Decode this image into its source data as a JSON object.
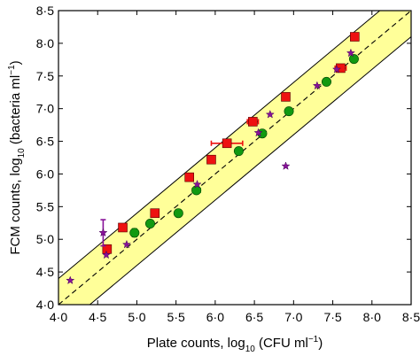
{
  "chart_data": {
    "type": "scatter",
    "x_tick_labels": [
      "4·0",
      "4·5",
      "5·0",
      "5·5",
      "6·0",
      "6·5",
      "7·0",
      "7·5",
      "8·0",
      "8·5"
    ],
    "y_tick_labels": [
      "4·0",
      "4·5",
      "5·0",
      "5·5",
      "6·0",
      "6·5",
      "7·0",
      "7·5",
      "8·0",
      "8·5"
    ],
    "xlim": [
      4.0,
      8.5
    ],
    "ylim": [
      4.0,
      8.5
    ],
    "xlabel": {
      "prefix": "Plate counts, log",
      "sub": "10",
      "suffix": " (CFU ml",
      "sup": "−1",
      "end": ")"
    },
    "ylabel": {
      "prefix": "FCM counts, log",
      "sub": "10",
      "suffix": " (bacteria ml",
      "sup": "−1",
      "end": ")"
    },
    "grid": false,
    "identity_line": {
      "slope": 1,
      "intercept": 0,
      "style": "dashed"
    },
    "band": {
      "half_width": 0.4,
      "color": "#ffff99"
    },
    "series": [
      {
        "marker": "square",
        "color": "#ee1111",
        "points": [
          {
            "x": 4.62,
            "y": 4.85
          },
          {
            "x": 4.82,
            "y": 5.18
          },
          {
            "x": 5.23,
            "y": 5.4
          },
          {
            "x": 5.67,
            "y": 5.95,
            "xerr": 0.05
          },
          {
            "x": 5.95,
            "y": 6.22
          },
          {
            "x": 6.15,
            "y": 6.47,
            "xerr": 0.2
          },
          {
            "x": 6.48,
            "y": 6.8,
            "xerr": 0.07
          },
          {
            "x": 6.9,
            "y": 7.18
          },
          {
            "x": 7.6,
            "y": 7.62,
            "xerr": 0.07
          },
          {
            "x": 7.78,
            "y": 8.1
          }
        ]
      },
      {
        "marker": "circle",
        "color": "#119911",
        "points": [
          {
            "x": 4.97,
            "y": 5.1,
            "yerr": 0.06
          },
          {
            "x": 5.17,
            "y": 5.24
          },
          {
            "x": 5.53,
            "y": 5.4
          },
          {
            "x": 5.76,
            "y": 5.75,
            "xerr": 0.05
          },
          {
            "x": 6.3,
            "y": 6.35
          },
          {
            "x": 6.6,
            "y": 6.62
          },
          {
            "x": 6.94,
            "y": 6.96
          },
          {
            "x": 7.42,
            "y": 7.41
          },
          {
            "x": 7.77,
            "y": 7.76
          }
        ]
      },
      {
        "marker": "star",
        "color": "#881199",
        "points": [
          {
            "x": 4.15,
            "y": 4.37
          },
          {
            "x": 4.57,
            "y": 5.1,
            "yerr": 0.2
          },
          {
            "x": 4.61,
            "y": 4.76
          },
          {
            "x": 4.87,
            "y": 4.92
          },
          {
            "x": 5.77,
            "y": 5.84
          },
          {
            "x": 6.55,
            "y": 6.63
          },
          {
            "x": 6.7,
            "y": 6.91
          },
          {
            "x": 6.9,
            "y": 6.12
          },
          {
            "x": 7.3,
            "y": 7.35
          },
          {
            "x": 7.55,
            "y": 7.6
          },
          {
            "x": 7.73,
            "y": 7.85
          }
        ]
      }
    ]
  }
}
